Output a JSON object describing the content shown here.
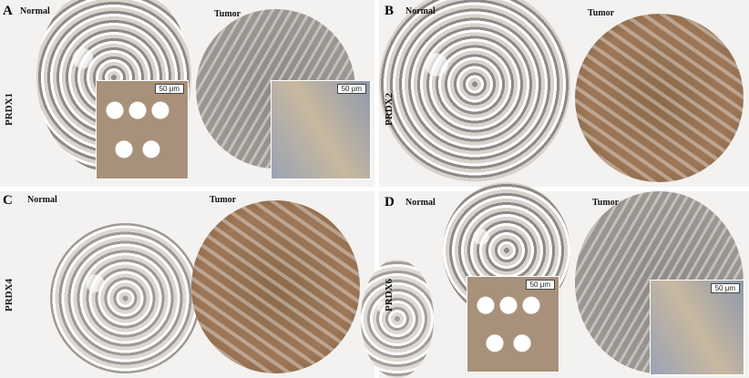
{
  "panels": [
    {
      "letter": "A",
      "normal": "Normal",
      "tumor": "Tumor",
      "protein": "PRDX1",
      "scale_normal": "50 μm",
      "scale_tumor": "50 μm"
    },
    {
      "letter": "B",
      "normal": "Normal",
      "tumor": "Tumor",
      "protein": "PRDX2"
    },
    {
      "letter": "C",
      "normal": "Normal",
      "tumor": "Tumor",
      "protein": "PRDX4"
    },
    {
      "letter": "D",
      "normal": "Normal",
      "tumor": "Tumor",
      "protein": "PRDX6",
      "scale_normal": "50 μm",
      "scale_tumor": "50 μm"
    }
  ]
}
